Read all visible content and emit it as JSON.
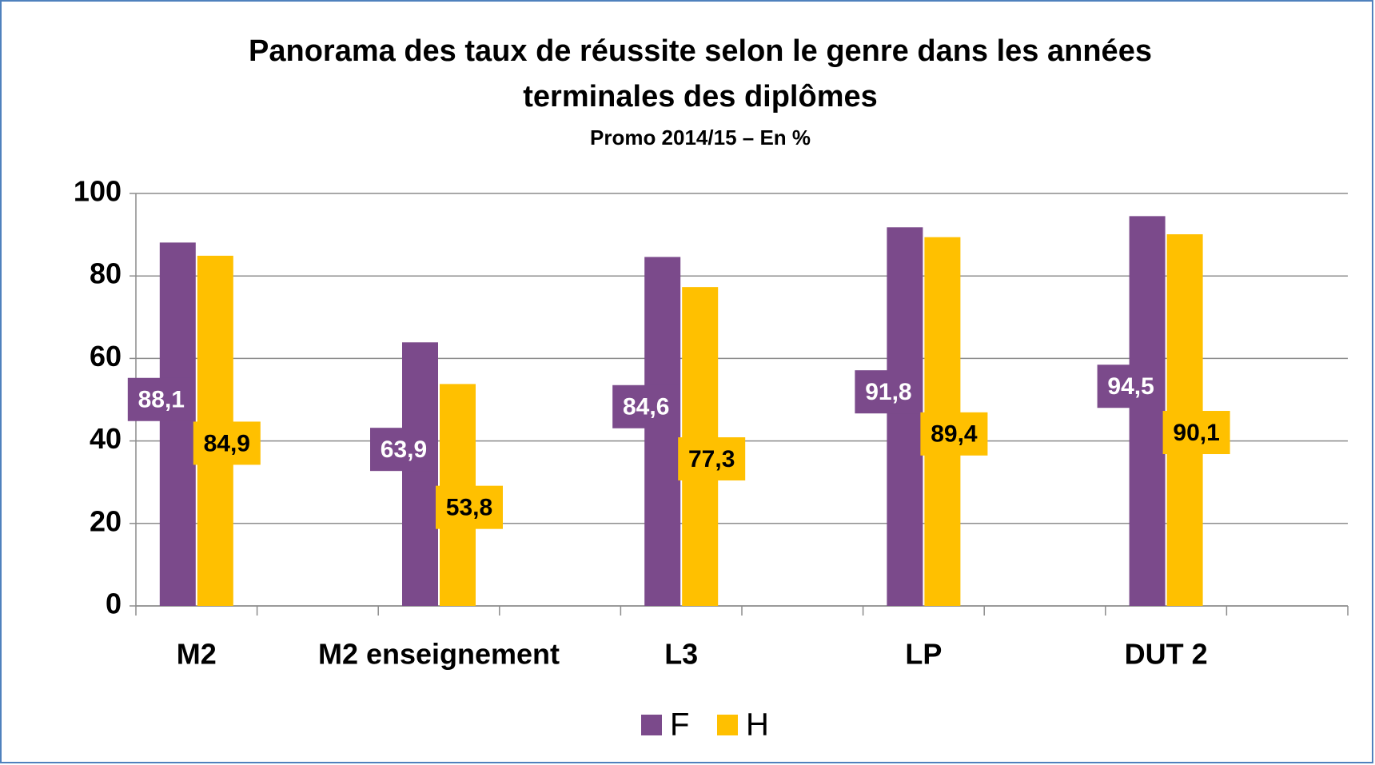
{
  "chart_data": {
    "type": "bar",
    "title": [
      "Panorama des taux de réussite  selon le genre dans les années",
      "terminales des diplômes"
    ],
    "subtitle": "Promo 2014/15 – En %",
    "categories": [
      "M2",
      "M2 enseignement",
      "L3",
      "LP",
      "DUT 2"
    ],
    "series": [
      {
        "name": "F",
        "color": "#7b4a8b",
        "values": [
          88.1,
          63.9,
          84.6,
          91.8,
          94.5
        ],
        "value_labels": [
          "88,1",
          "63,9",
          "84,6",
          "91,8",
          "94,5"
        ]
      },
      {
        "name": "H",
        "color": "#ffc000",
        "values": [
          84.9,
          53.8,
          77.3,
          89.4,
          90.1
        ],
        "value_labels": [
          "84,9",
          "53,8",
          "77,3",
          "89,4",
          "90,1"
        ]
      }
    ],
    "ylim": [
      0,
      100
    ],
    "yticks": [
      0,
      20,
      40,
      60,
      80,
      100
    ],
    "grid": true,
    "legend": "bottom"
  }
}
